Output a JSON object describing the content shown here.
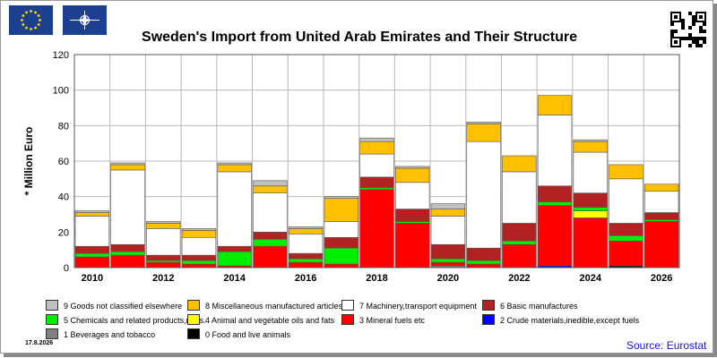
{
  "title": "Sweden's Import from United Arab Emirates and Their Structure",
  "date_stamp": "17.8.2026",
  "source": "Source: Eurostat",
  "icons": {
    "flag_eu": "eu-flag-icon",
    "flag_nato": "nato-flag-icon",
    "qr": "qr-code-icon"
  },
  "chart_data": {
    "type": "bar",
    "stacked": true,
    "title": "Sweden's Import from United Arab Emirates and Their Structure",
    "ylabel": "* Million Euro",
    "xlabel": "",
    "ylim": [
      0,
      120
    ],
    "yticks": [
      0,
      20,
      40,
      60,
      80,
      100,
      120
    ],
    "grid": true,
    "legend_placement": "bottom",
    "categories": [
      "2010",
      "2011",
      "2012",
      "2013",
      "2014",
      "2015",
      "2016",
      "2017",
      "2018",
      "2019",
      "2020",
      "2021",
      "2022",
      "2023",
      "2024",
      "2025",
      "2026"
    ],
    "xtick_labels": [
      "2010",
      "",
      "2012",
      "",
      "2014",
      "",
      "2016",
      "",
      "2018",
      "",
      "2020",
      "",
      "2022",
      "",
      "2024",
      "",
      "2026"
    ],
    "series": [
      {
        "name": "0 Food and live animals",
        "color": "#000000",
        "values": [
          0,
          0,
          0,
          0,
          0,
          0,
          0,
          0,
          0,
          0,
          0,
          0,
          0,
          0,
          0,
          1,
          0
        ]
      },
      {
        "name": "1 Beverages and tobacco",
        "color": "#808080",
        "values": [
          0,
          0,
          0,
          0,
          0,
          0,
          0,
          0,
          0,
          0,
          1,
          0,
          0,
          0,
          0,
          0,
          0
        ]
      },
      {
        "name": "2 Crude materials,inedible,except fuels",
        "color": "#0000ff",
        "values": [
          0,
          0,
          0,
          0,
          0,
          0,
          0,
          0,
          0,
          0,
          0,
          0,
          0,
          1,
          0,
          0,
          0
        ]
      },
      {
        "name": "3 Mineral fuels etc",
        "color": "#ff0000",
        "values": [
          6,
          7,
          3,
          2,
          1,
          12,
          3,
          2,
          44,
          25,
          2,
          2,
          13,
          34,
          28,
          14,
          26
        ]
      },
      {
        "name": "4 Animal and vegetable oils and fats",
        "color": "#ffff00",
        "values": [
          0,
          0,
          0,
          0,
          0,
          0,
          0,
          0,
          0,
          0,
          0,
          0,
          0,
          0,
          4,
          0,
          0
        ]
      },
      {
        "name": "5 Chemicals and related products,n.e.s.",
        "color": "#00ee00",
        "values": [
          2,
          2,
          1,
          2,
          8,
          4,
          2,
          9,
          1,
          1,
          2,
          2,
          2,
          2,
          2,
          3,
          1
        ]
      },
      {
        "name": "6 Basic manufactures",
        "color": "#b22222",
        "values": [
          4,
          4,
          3,
          3,
          3,
          4,
          3,
          6,
          6,
          7,
          8,
          7,
          10,
          9,
          8,
          7,
          4
        ]
      },
      {
        "name": "7 Machinery,transport equipment",
        "color": "#ffffff",
        "values": [
          17,
          42,
          15,
          10,
          42,
          22,
          11,
          9,
          13,
          15,
          16,
          60,
          29,
          40,
          23,
          25,
          12
        ]
      },
      {
        "name": "8 Miscellaneous manufactured articles",
        "color": "#ffc000",
        "values": [
          2,
          3,
          3,
          4,
          4,
          4,
          3,
          13,
          7,
          8,
          4,
          10,
          9,
          11,
          6,
          8,
          4
        ]
      },
      {
        "name": "9 Goods not classified elsewhere",
        "color": "#c0c0c0",
        "values": [
          1,
          1,
          1,
          1,
          1,
          3,
          1,
          1,
          2,
          1,
          3,
          1,
          0,
          0,
          1,
          0,
          0
        ]
      }
    ]
  },
  "legend": [
    {
      "label": "9 Goods not classified elsewhere",
      "color": "#c0c0c0"
    },
    {
      "label": "8 Miscellaneous manufactured articles",
      "color": "#ffc000"
    },
    {
      "label": "7 Machinery,transport equipment",
      "color": "#ffffff"
    },
    {
      "label": "6 Basic manufactures",
      "color": "#b22222"
    },
    {
      "label": "5 Chemicals and related products,n.e.s.",
      "color": "#00ee00"
    },
    {
      "label": "4 Animal and vegetable oils and fats",
      "color": "#ffff00"
    },
    {
      "label": "3 Mineral fuels etc",
      "color": "#ff0000"
    },
    {
      "label": "2 Crude materials,inedible,except fuels",
      "color": "#0000ff"
    },
    {
      "label": "1 Beverages and tobacco",
      "color": "#808080"
    },
    {
      "label": "0 Food and live animals",
      "color": "#000000"
    }
  ]
}
